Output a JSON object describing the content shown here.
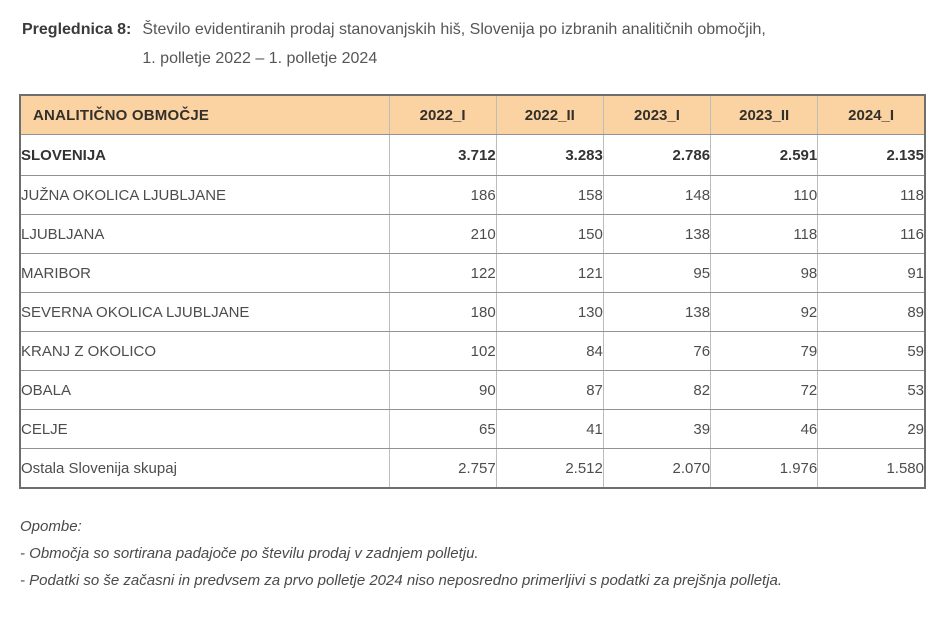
{
  "page": {
    "title_label": "Preglednica 8:",
    "title_line1": "Število evidentiranih prodaj stanovanjskih hiš, Slovenija po izbranih analitičnih območjih,",
    "title_line2": "1. polletje 2022 – 1. polletje 2024"
  },
  "table": {
    "header": [
      "ANALITIČNO OBMOČJE",
      "2022_I",
      "2022_II",
      "2023_I",
      "2023_II",
      "2024_I"
    ],
    "rows": [
      {
        "area": "SLOVENIJA",
        "v": [
          "3.712",
          "3.283",
          "2.786",
          "2.591",
          "2.135"
        ]
      },
      {
        "area": "JUŽNA OKOLICA LJUBLJANE",
        "v": [
          "186",
          "158",
          "148",
          "110",
          "118"
        ]
      },
      {
        "area": "LJUBLJANA",
        "v": [
          "210",
          "150",
          "138",
          "118",
          "116"
        ]
      },
      {
        "area": "MARIBOR",
        "v": [
          "122",
          "121",
          "95",
          "98",
          "91"
        ]
      },
      {
        "area": "SEVERNA OKOLICA LJUBLJANE",
        "v": [
          "180",
          "130",
          "138",
          "92",
          "89"
        ]
      },
      {
        "area": "KRANJ Z OKOLICO",
        "v": [
          "102",
          "84",
          "76",
          "79",
          "59"
        ]
      },
      {
        "area": "OBALA",
        "v": [
          "90",
          "87",
          "82",
          "72",
          "53"
        ]
      },
      {
        "area": "CELJE",
        "v": [
          "65",
          "41",
          "39",
          "46",
          "29"
        ]
      },
      {
        "area": "Ostala Slovenija skupaj",
        "v": [
          "2.757",
          "2.512",
          "2.070",
          "1.976",
          "1.580"
        ]
      }
    ]
  },
  "notes": {
    "heading": "Opombe:",
    "lines": [
      "- Območja so sortirana padajoče po številu prodaj v zadnjem polletju.",
      "- Podatki so še začasni in predvsem za prvo polletje 2024 niso neposredno primerljivi s podatki za prejšnja polletja."
    ]
  },
  "colors": {
    "header_bg": "#FBD3A3",
    "header_text": "#33302A",
    "body_text": "#4D4D4D",
    "border_outer": "#6E6E6E",
    "border_inner_horizontal": "#929292",
    "border_inner_vertical": "#BDBDBD"
  }
}
